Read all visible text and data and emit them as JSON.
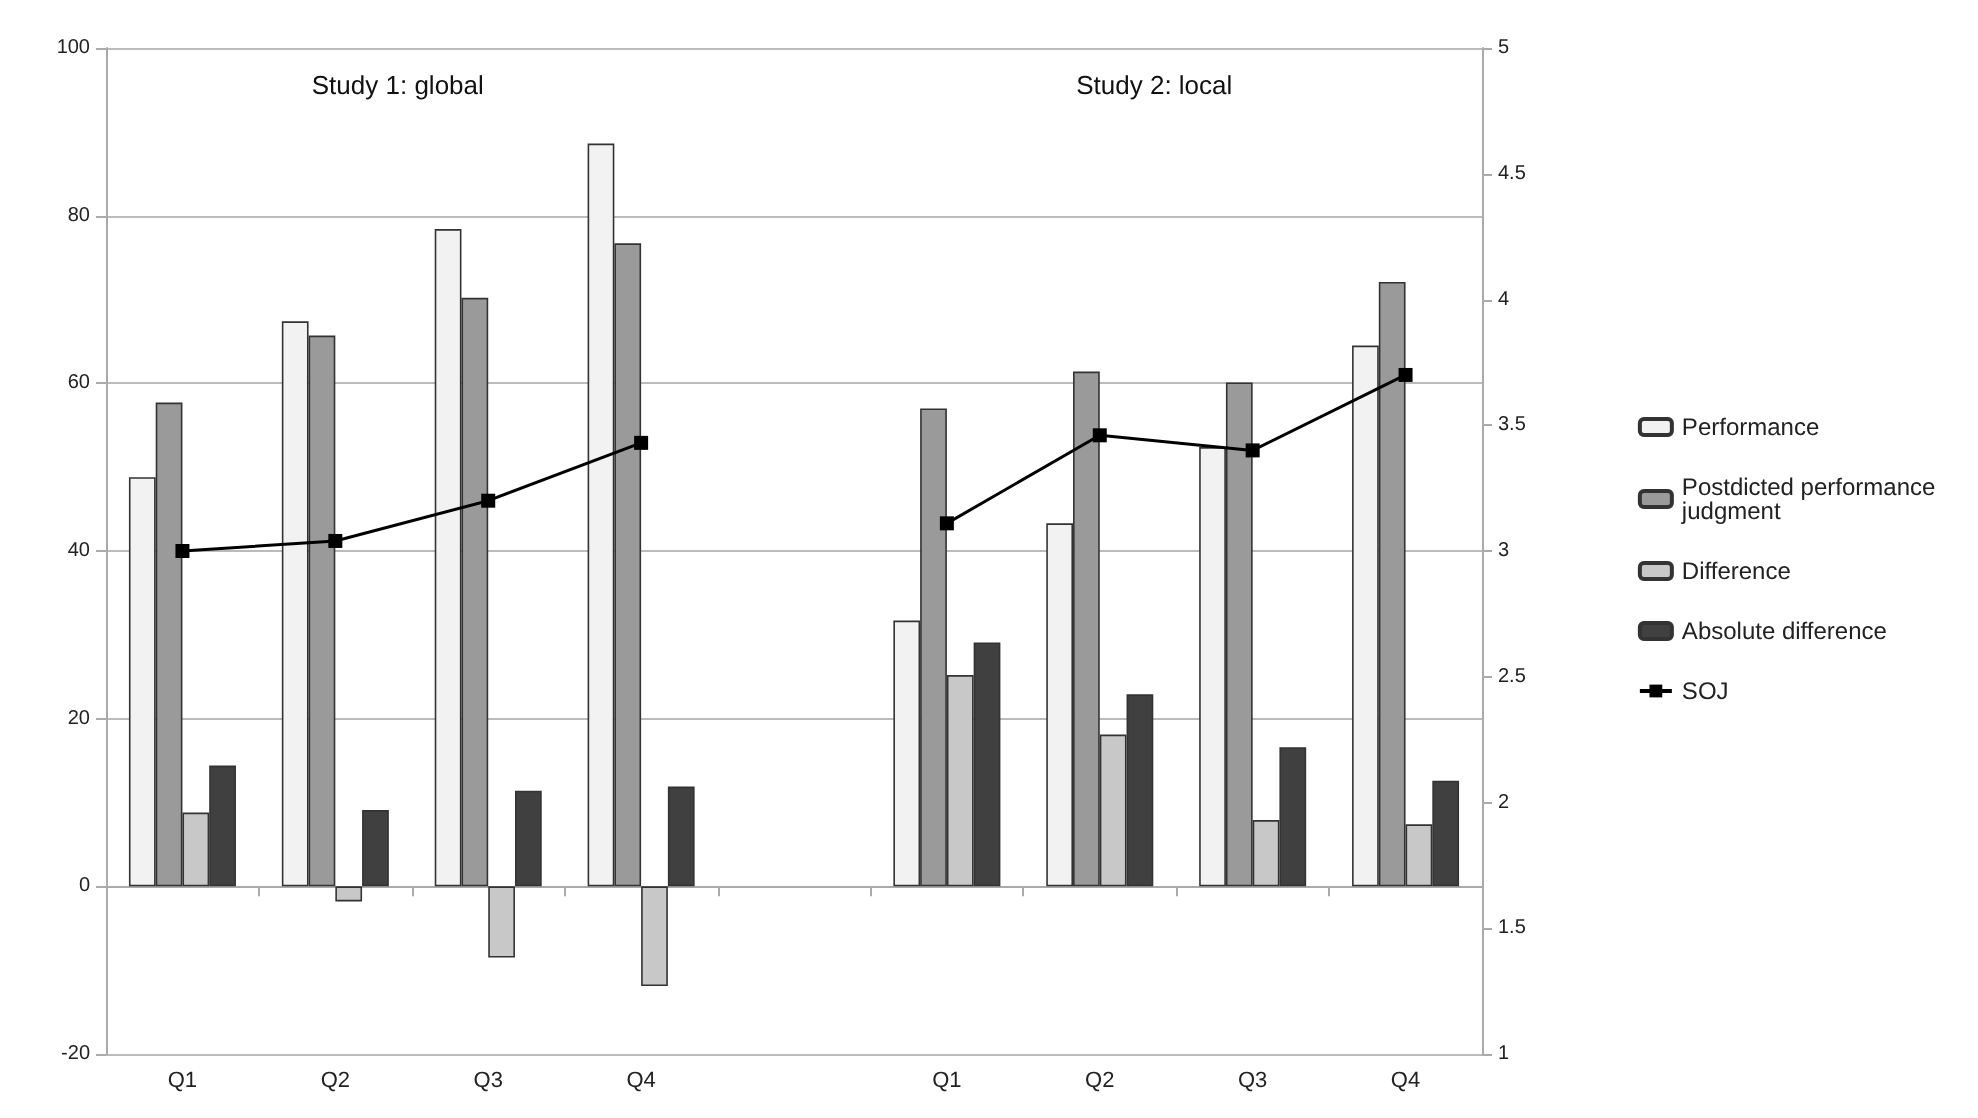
{
  "chart_data": {
    "type": "bar",
    "annotations": [
      "Study 1: global",
      "Study 2: local"
    ],
    "categories": [
      "Q1",
      "Q2",
      "Q3",
      "Q4",
      null,
      "Q1",
      "Q2",
      "Q3",
      "Q4"
    ],
    "series": [
      {
        "name": "Performance",
        "color": "#f2f2f2",
        "values": [
          48.8,
          67.4,
          78.4,
          88.6,
          null,
          31.7,
          43.3,
          52.4,
          64.5
        ]
      },
      {
        "name": "Postdicted performance judgment",
        "color": "#9a9a9a",
        "values": [
          57.7,
          65.7,
          70.2,
          76.7,
          null,
          57.0,
          61.4,
          60.1,
          72.1
        ]
      },
      {
        "name": "Difference",
        "color": "#c8c8c8",
        "values": [
          8.8,
          -1.8,
          -8.5,
          -11.9,
          null,
          25.2,
          18.1,
          7.9,
          7.4
        ]
      },
      {
        "name": "Absolute difference",
        "color": "#404040",
        "values": [
          14.4,
          9.1,
          11.4,
          11.9,
          null,
          29.1,
          22.9,
          16.6,
          12.6
        ]
      },
      {
        "name": "SOJ",
        "type": "line",
        "axis": "y2",
        "color": "#000000",
        "marker": "square",
        "values": [
          3.0,
          3.04,
          3.2,
          3.43,
          null,
          3.11,
          3.46,
          3.4,
          3.7
        ]
      }
    ],
    "ylim": [
      -20,
      100
    ],
    "yticks": [
      -20,
      0,
      20,
      40,
      60,
      80,
      100
    ],
    "y2lim": [
      1,
      5
    ],
    "y2ticks": [
      1,
      1.5,
      2,
      2.5,
      3,
      3.5,
      4,
      4.5,
      5
    ],
    "grid": "y",
    "legend": "right"
  }
}
